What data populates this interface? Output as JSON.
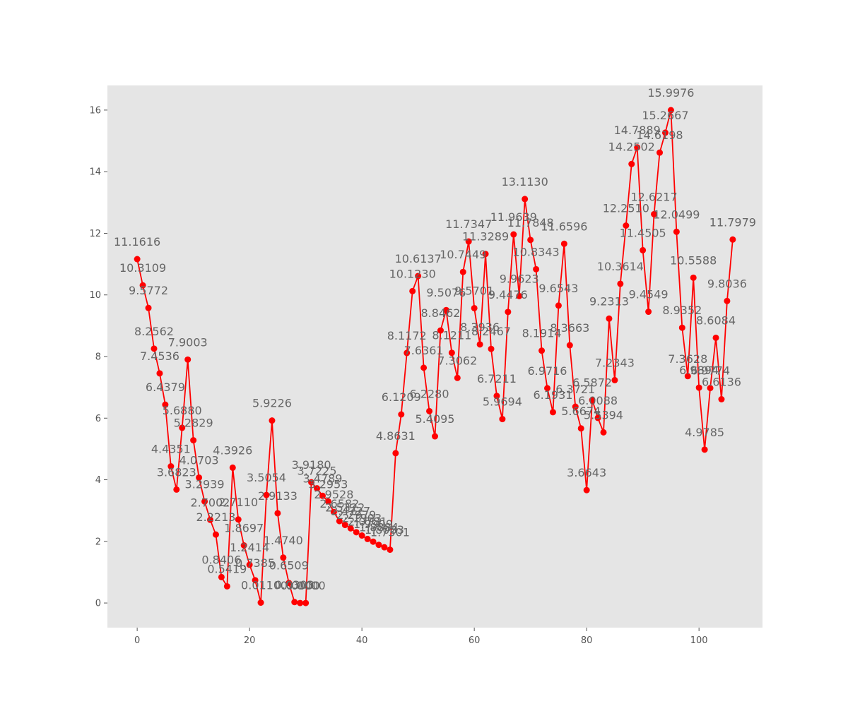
{
  "chart_data": {
    "type": "line",
    "title": "",
    "xlabel": "",
    "ylabel": "",
    "xlim": [
      -5.3,
      111.3
    ],
    "ylim": [
      -0.8,
      16.8
    ],
    "x_ticks": [
      0,
      20,
      40,
      60,
      80,
      100
    ],
    "y_ticks": [
      0,
      2,
      4,
      6,
      8,
      10,
      12,
      14,
      16
    ],
    "grid": false,
    "legend": "none",
    "colors": {
      "line": "#ff0000",
      "marker": "#ff0000",
      "plot_bg": "#e5e5e5",
      "label": "#666666",
      "tick": "#555555"
    },
    "series": [
      {
        "x": [
          0,
          1,
          2,
          3,
          4,
          5,
          6,
          7,
          8,
          9,
          10,
          11,
          12,
          13,
          14,
          15,
          16,
          17,
          18,
          19,
          20,
          21,
          22,
          23,
          24,
          25,
          26,
          27,
          28,
          29,
          30,
          31,
          32,
          33,
          34,
          35,
          36,
          37,
          38,
          39,
          40,
          41,
          42,
          43,
          44,
          45,
          46,
          47,
          48,
          49,
          50,
          51,
          52,
          53,
          54,
          55,
          56,
          57,
          58,
          59,
          60,
          61,
          62,
          63,
          64,
          65,
          66,
          67,
          68,
          69,
          70,
          71,
          72,
          73,
          74,
          75,
          76,
          77,
          78,
          79,
          80,
          81,
          82,
          83,
          84,
          85,
          86,
          87,
          88,
          89,
          90,
          91,
          92,
          93,
          94,
          95,
          96,
          97,
          98,
          99,
          100,
          101,
          102,
          103,
          104,
          105,
          106
        ],
        "values": [
          11.1616,
          10.3109,
          9.5772,
          8.2562,
          7.4536,
          6.4379,
          4.4351,
          3.6823,
          5.688,
          7.9003,
          5.2829,
          4.0703,
          3.2939,
          2.7002,
          2.2213,
          0.8406,
          0.5419,
          4.3926,
          2.711,
          1.8697,
          1.2414,
          0.7385,
          0.011,
          3.5054,
          5.9226,
          2.9133,
          1.474,
          0.6509,
          0.0303,
          0.0,
          0.0,
          3.918,
          3.7225,
          3.4789,
          3.2953,
          2.9528,
          2.6582,
          2.5322,
          2.4227,
          2.2979,
          2.1903,
          2.0781,
          1.9909,
          1.8884,
          1.8083,
          1.7301,
          4.8631,
          6.1209,
          8.1172,
          10.123,
          10.6137,
          7.6361,
          6.228,
          5.4095,
          8.8462,
          9.5076,
          8.1211,
          7.3062,
          10.7449,
          11.7347,
          9.5701,
          8.3936,
          11.3289,
          8.2467,
          6.7211,
          5.9694,
          9.4476,
          11.9639,
          9.9623,
          13.113,
          11.7848,
          10.8343,
          8.1914,
          6.9716,
          6.1931,
          9.6543,
          11.6596,
          8.3663,
          6.3721,
          5.6674,
          3.6643,
          6.5872,
          6.0088,
          5.5394,
          9.2313,
          7.2343,
          10.3614,
          12.251,
          14.2502,
          14.7889,
          11.4505,
          9.4549,
          12.6217,
          14.6198,
          15.2667,
          15.9976,
          12.0499,
          8.9352,
          7.3628,
          10.5588,
          6.9894,
          4.9785,
          6.9774,
          8.6084,
          6.6136,
          9.8036,
          11.7979
        ],
        "labels": [
          "11.1616",
          "10.3109",
          "9.5772",
          "8.2562",
          "7.4536",
          "6.4379",
          "4.4351",
          "3.6823",
          "5.6880",
          "7.9003",
          "5.2829",
          "4.0703",
          "3.2939",
          "2.7002",
          "2.2213",
          "0.8406",
          "0.5419",
          "4.3926",
          "2.7110",
          "1.8697",
          "1.2414",
          "0.7385",
          "0.0110",
          "3.5054",
          "5.9226",
          "2.9133",
          "1.4740",
          "0.6509",
          "0.0303",
          "0.0000",
          "0.0000",
          "3.9180",
          "3.7225",
          "3.4789",
          "3.2953",
          "2.9528",
          "2.6582",
          "2.5322",
          "2.4227",
          "2.2979",
          "2.1903",
          "2.0781",
          "1.9909",
          "1.8884",
          "1.8083",
          "1.7301",
          "4.8631",
          "6.1209",
          "8.1172",
          "10.1230",
          "10.6137",
          "7.6361",
          "6.2280",
          "5.4095",
          "8.8462",
          "9.5076",
          "8.1211",
          "7.3062",
          "10.7449",
          "11.7347",
          "9.5701",
          "8.3936",
          "11.3289",
          "8.2467",
          "6.7211",
          "5.9694",
          "9.4476",
          "11.9639",
          "9.9623",
          "13.1130",
          "11.7848",
          "10.8343",
          "8.1914",
          "6.9716",
          "6.1931",
          "9.6543",
          "11.6596",
          "8.3663",
          "6.3721",
          "5.6674",
          "3.6643",
          "6.5872",
          "6.0088",
          "5.5394",
          "9.2313",
          "7.2343",
          "10.3614",
          "12.2510",
          "14.2502",
          "14.7889",
          "11.4505",
          "9.4549",
          "12.6217",
          "14.6198",
          "15.2667",
          "15.9976",
          "12.0499",
          "8.9352",
          "7.3628",
          "10.5588",
          "6.9894",
          "4.9785",
          "6.9774",
          "8.6084",
          "6.6136",
          "9.8036",
          "11.7979"
        ]
      }
    ]
  }
}
